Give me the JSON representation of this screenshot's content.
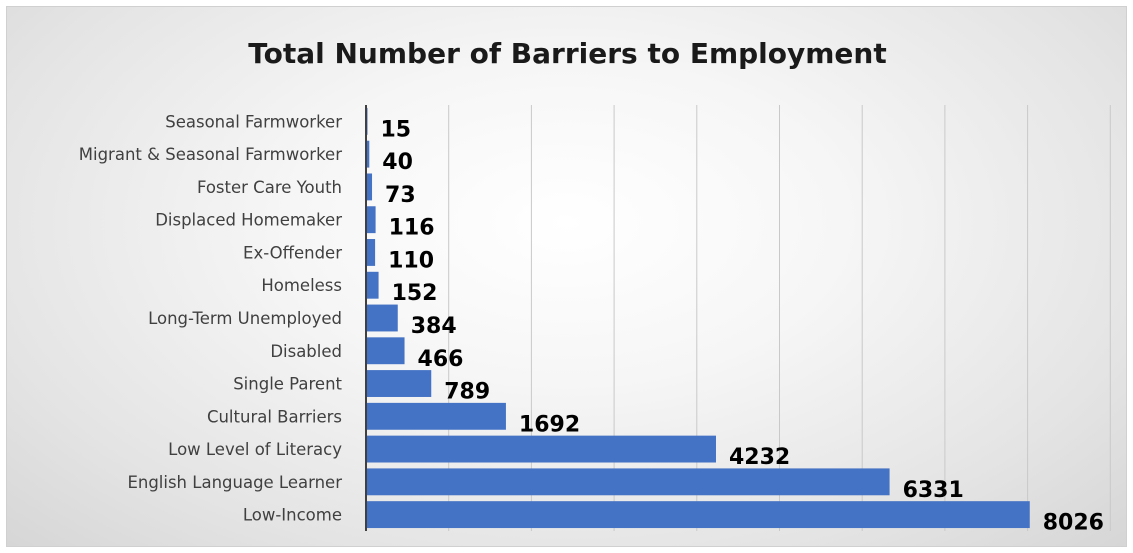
{
  "chart_data": {
    "type": "bar",
    "orientation": "horizontal",
    "title": "Total Number of Barriers to Employment",
    "categories": [
      "Seasonal Farmworker",
      "Migrant & Seasonal Farmworker",
      "Foster Care Youth",
      "Displaced Homemaker",
      "Ex-Offender",
      "Homeless",
      "Long-Term Unemployed",
      "Disabled",
      "Single Parent",
      "Cultural Barriers",
      "Low Level of Literacy",
      "English Language Learner",
      "Low-Income"
    ],
    "values": [
      15,
      40,
      73,
      116,
      110,
      152,
      384,
      466,
      789,
      1692,
      4232,
      6331,
      8026
    ],
    "xlim": [
      0,
      8000
    ],
    "grid": true,
    "data_labels": true,
    "bar_color": "#4472C4"
  }
}
